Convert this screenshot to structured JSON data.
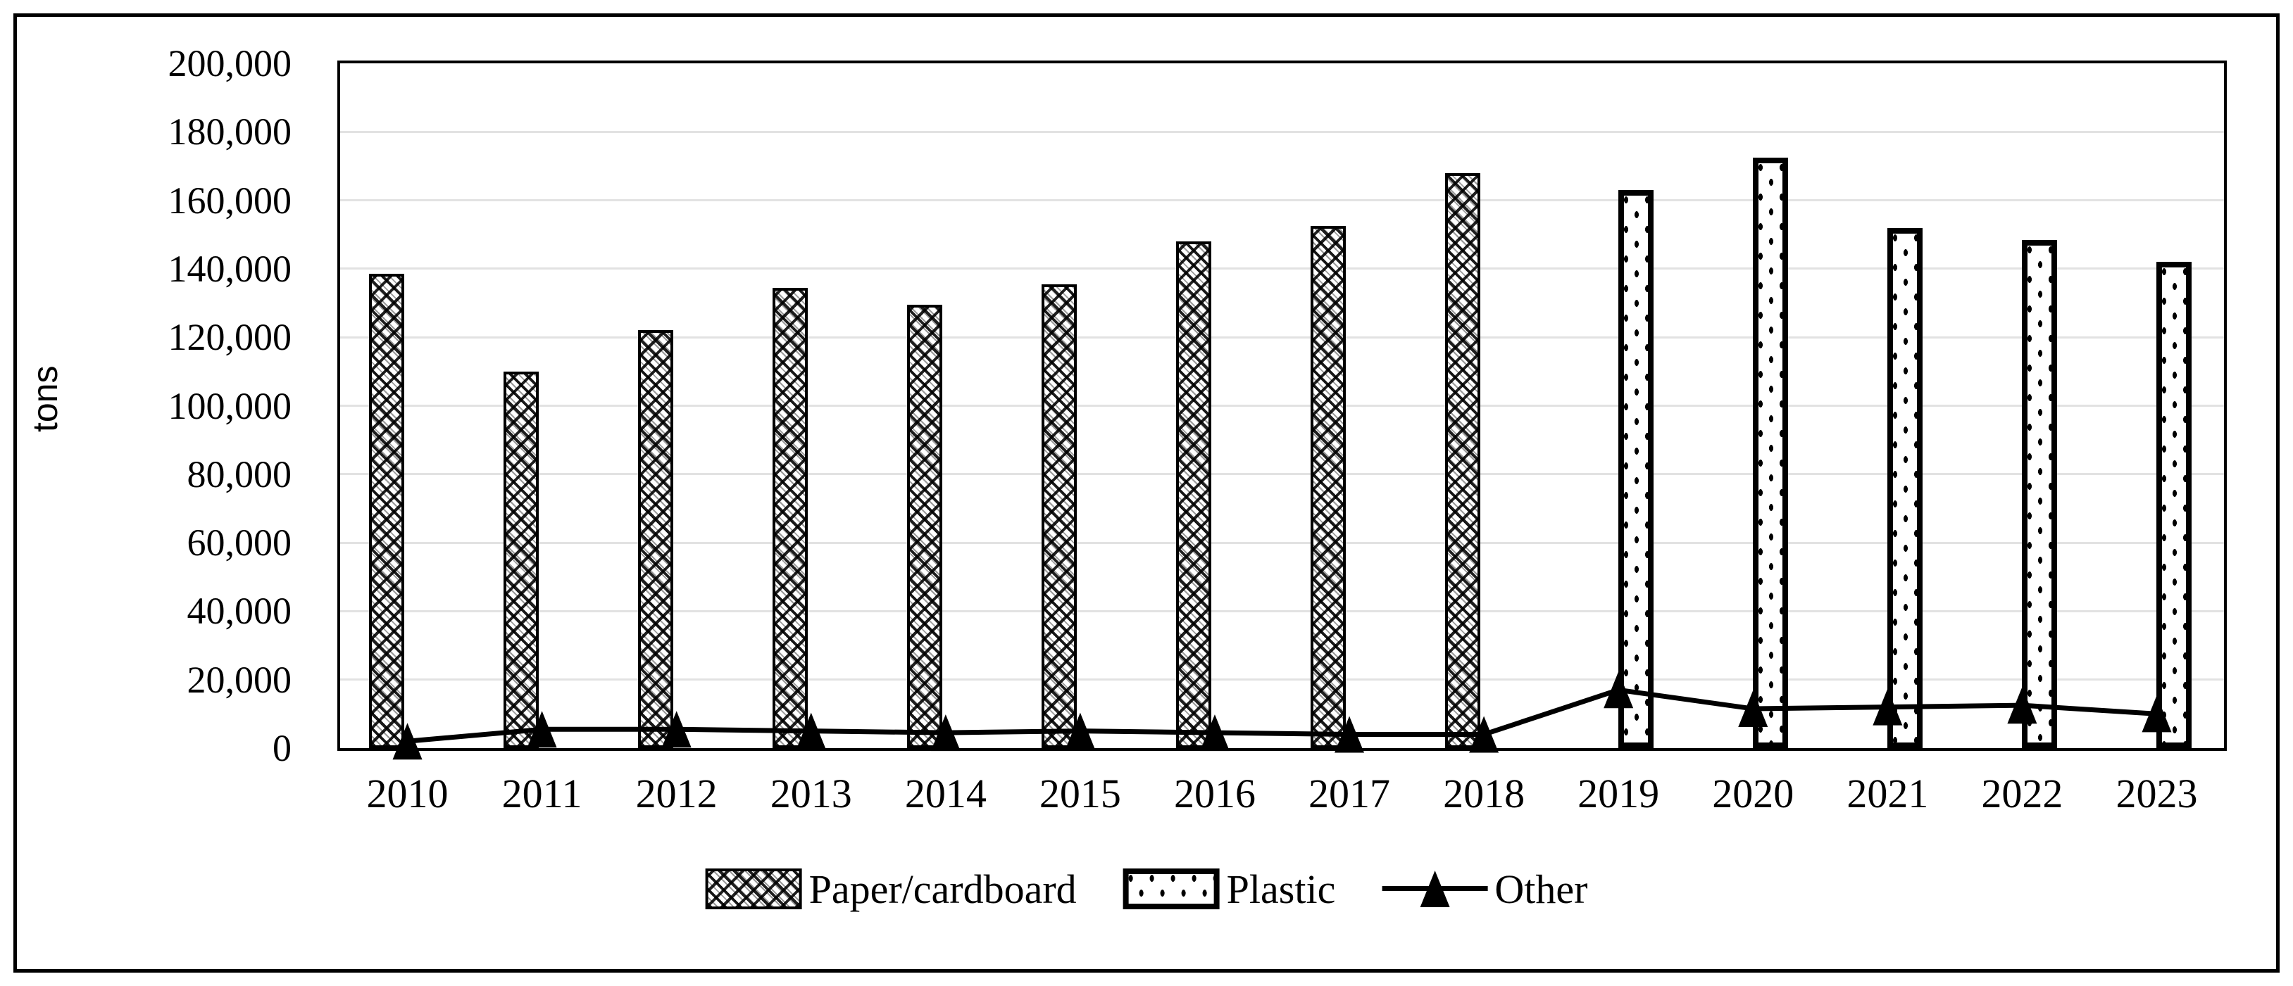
{
  "chart_data": {
    "type": "bar+line",
    "title": "",
    "xlabel": "",
    "ylabel": "tons",
    "ylim": [
      0,
      200000
    ],
    "ytick_step": 20000,
    "ytick_labels": [
      "0",
      "20,000",
      "40,000",
      "60,000",
      "80,000",
      "100,000",
      "120,000",
      "140,000",
      "160,000",
      "180,000",
      "200,000"
    ],
    "gridlines": true,
    "legend_position": "bottom",
    "categories": [
      "2010",
      "2011",
      "2012",
      "2013",
      "2014",
      "2015",
      "2016",
      "2017",
      "2018",
      "2019",
      "2020",
      "2021",
      "2022",
      "2023"
    ],
    "series": [
      {
        "name": "Paper/cardboard",
        "type": "bar",
        "pattern": "crosshatch",
        "values": [
          138500,
          110000,
          122000,
          134500,
          129500,
          135500,
          148000,
          152500,
          168000,
          null,
          null,
          null,
          null,
          null
        ]
      },
      {
        "name": "Plastic",
        "type": "bar",
        "pattern": "dotted",
        "values": [
          null,
          null,
          null,
          null,
          null,
          null,
          null,
          null,
          null,
          163000,
          172500,
          152000,
          148500,
          142000
        ]
      },
      {
        "name": "Other",
        "type": "line",
        "marker": "triangle",
        "values": [
          2000,
          5500,
          5500,
          5000,
          4500,
          5000,
          4500,
          4000,
          4000,
          17000,
          11500,
          12000,
          12500,
          10000
        ]
      }
    ],
    "colors": {
      "foreground": "#000000",
      "gridline": "#e0e0e0",
      "background": "#ffffff"
    }
  }
}
